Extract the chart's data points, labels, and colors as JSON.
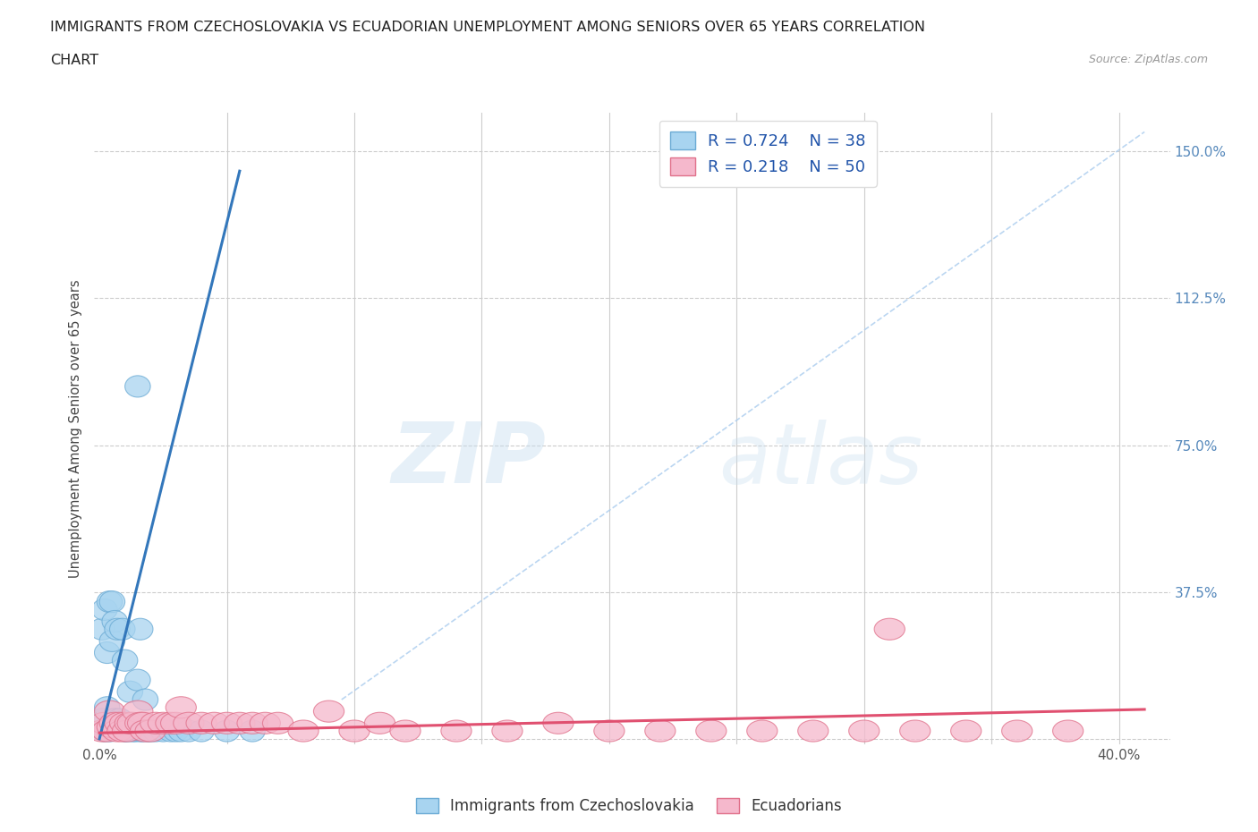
{
  "title_line1": "IMMIGRANTS FROM CZECHOSLOVAKIA VS ECUADORIAN UNEMPLOYMENT AMONG SENIORS OVER 65 YEARS CORRELATION",
  "title_line2": "CHART",
  "source": "Source: ZipAtlas.com",
  "ylabel": "Unemployment Among Seniors over 65 years",
  "blue_R": "0.724",
  "blue_N": "38",
  "pink_R": "0.218",
  "pink_N": "50",
  "blue_color": "#A8D4F0",
  "pink_color": "#F5B8CC",
  "blue_edge_color": "#6aaad4",
  "pink_edge_color": "#e0708a",
  "blue_line_color": "#3377BB",
  "pink_line_color": "#E05070",
  "legend_label_blue": "Immigrants from Czechoslovakia",
  "legend_label_pink": "Ecuadorians",
  "xlim": [
    -0.002,
    0.42
  ],
  "ylim": [
    -0.015,
    1.6
  ],
  "y_grid_vals": [
    0.0,
    0.375,
    0.75,
    1.125,
    1.5
  ],
  "x_grid_vals": [
    0.05,
    0.1,
    0.15,
    0.2,
    0.25,
    0.3,
    0.35,
    0.4
  ],
  "right_tick_labels": [
    "",
    "37.5%",
    "75.0%",
    "112.5%",
    "150.0%"
  ],
  "background_color": "#FFFFFF",
  "grid_color": "#CCCCCC",
  "blue_scatter_x": [
    0.001,
    0.001,
    0.002,
    0.002,
    0.003,
    0.003,
    0.004,
    0.004,
    0.005,
    0.005,
    0.006,
    0.006,
    0.007,
    0.008,
    0.009,
    0.01,
    0.01,
    0.011,
    0.012,
    0.013,
    0.014,
    0.015,
    0.015,
    0.016,
    0.016,
    0.017,
    0.018,
    0.019,
    0.02,
    0.022,
    0.025,
    0.028,
    0.03,
    0.032,
    0.035,
    0.04,
    0.05,
    0.06
  ],
  "blue_scatter_y": [
    0.05,
    0.28,
    0.02,
    0.33,
    0.08,
    0.22,
    0.35,
    0.02,
    0.25,
    0.35,
    0.05,
    0.3,
    0.28,
    0.05,
    0.28,
    0.02,
    0.2,
    0.02,
    0.12,
    0.02,
    0.02,
    0.9,
    0.15,
    0.02,
    0.28,
    0.02,
    0.1,
    0.02,
    0.02,
    0.02,
    0.02,
    0.02,
    0.02,
    0.02,
    0.02,
    0.02,
    0.02,
    0.02
  ],
  "pink_scatter_x": [
    0.001,
    0.002,
    0.003,
    0.004,
    0.005,
    0.006,
    0.007,
    0.008,
    0.009,
    0.01,
    0.011,
    0.012,
    0.013,
    0.015,
    0.016,
    0.017,
    0.018,
    0.02,
    0.022,
    0.025,
    0.028,
    0.03,
    0.032,
    0.035,
    0.04,
    0.045,
    0.05,
    0.055,
    0.06,
    0.065,
    0.07,
    0.08,
    0.09,
    0.1,
    0.11,
    0.12,
    0.14,
    0.16,
    0.18,
    0.2,
    0.22,
    0.24,
    0.26,
    0.28,
    0.3,
    0.31,
    0.32,
    0.34,
    0.36,
    0.38
  ],
  "pink_scatter_y": [
    0.02,
    0.04,
    0.02,
    0.07,
    0.03,
    0.04,
    0.02,
    0.04,
    0.02,
    0.04,
    0.02,
    0.04,
    0.04,
    0.07,
    0.04,
    0.04,
    0.02,
    0.02,
    0.04,
    0.04,
    0.04,
    0.04,
    0.08,
    0.04,
    0.04,
    0.04,
    0.04,
    0.04,
    0.04,
    0.04,
    0.04,
    0.02,
    0.07,
    0.02,
    0.04,
    0.02,
    0.02,
    0.02,
    0.04,
    0.02,
    0.02,
    0.02,
    0.02,
    0.02,
    0.02,
    0.28,
    0.02,
    0.02,
    0.02,
    0.02
  ],
  "blue_line_x": [
    0.0,
    0.055
  ],
  "blue_line_y": [
    0.0,
    1.45
  ],
  "pink_line_x": [
    0.0,
    0.41
  ],
  "pink_line_y": [
    0.015,
    0.075
  ],
  "dash_line_x": [
    0.095,
    0.41
  ],
  "dash_line_y": [
    0.1,
    1.55
  ],
  "watermark_zip": "ZIP",
  "watermark_atlas": "atlas"
}
